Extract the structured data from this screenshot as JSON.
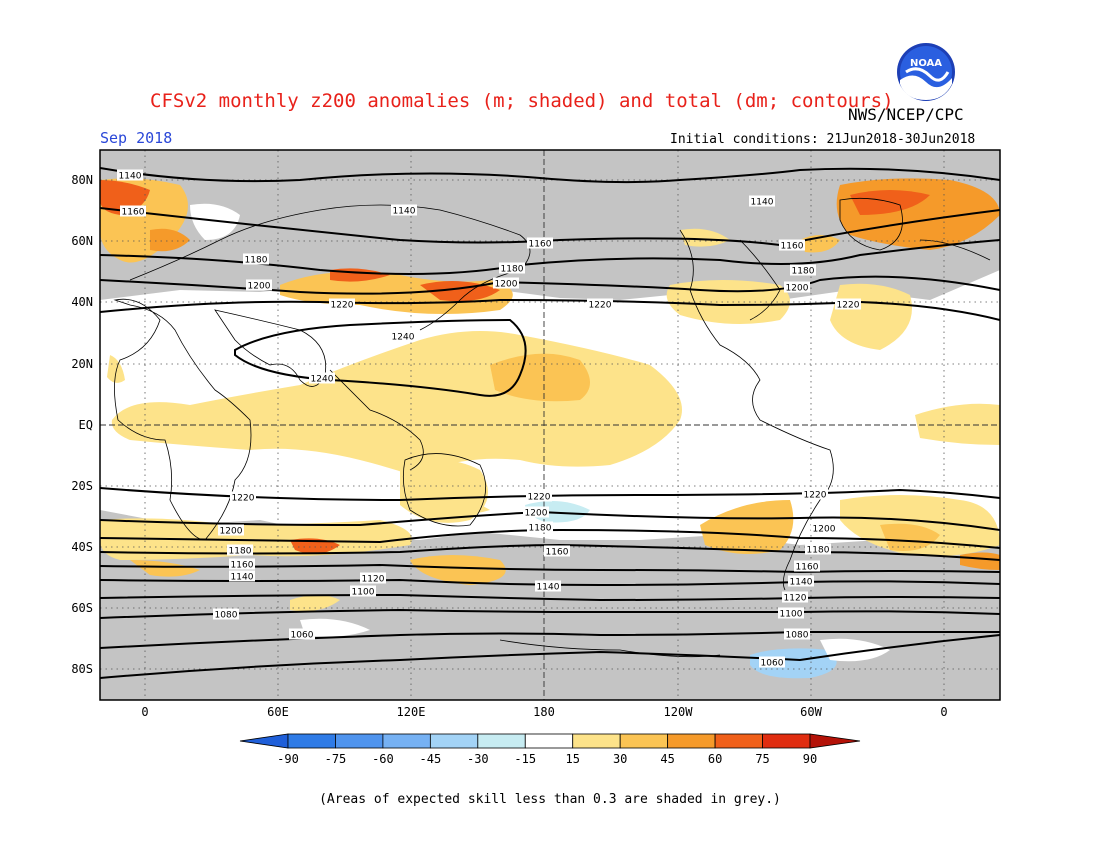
{
  "header": {
    "title": "CFSv2 monthly z200 anomalies (m; shaded) and total (dm; contours)",
    "agency": "NWS/NCEP/CPC",
    "month": "Sep 2018",
    "initial_conditions": "Initial conditions: 21Jun2018-30Jun2018"
  },
  "logo": {
    "icon": "noaa-logo-icon",
    "text": "NOAA"
  },
  "axes": {
    "lat_labels": [
      "80N",
      "60N",
      "40N",
      "20N",
      "EQ",
      "20S",
      "40S",
      "60S",
      "80S"
    ],
    "lon_labels": [
      "0",
      "60E",
      "120E",
      "180",
      "120W",
      "60W",
      "0"
    ]
  },
  "contour_labels": [
    "1140",
    "1160",
    "1180",
    "1200",
    "1220",
    "1240",
    "1240",
    "1140",
    "1160",
    "1180",
    "1200",
    "1220",
    "1140",
    "1160",
    "1180",
    "1200",
    "1220",
    "1220",
    "1200",
    "1180",
    "1160",
    "1140",
    "1120",
    "1100",
    "1080",
    "1060",
    "1220",
    "1200",
    "1180",
    "1160",
    "1140",
    "1220",
    "1200",
    "1180",
    "1160",
    "1140",
    "1120",
    "1100",
    "1080",
    "1060"
  ],
  "colorbar": {
    "tick_labels": [
      "-90",
      "-75",
      "-60",
      "-45",
      "-30",
      "-15",
      "15",
      "30",
      "45",
      "60",
      "75",
      "90"
    ],
    "colors": [
      "#1f5fd9",
      "#2f7be6",
      "#4f94ee",
      "#76b1f3",
      "#a3d3f6",
      "#c7ecf2",
      "#ffffff",
      "#fde38a",
      "#fbc454",
      "#f59a2a",
      "#f0601a",
      "#e02d10",
      "#b41208"
    ]
  },
  "colors": {
    "skill_grey": "#c4c4c4",
    "title": "#e8211a",
    "month": "#2a47d8"
  },
  "footnote": "(Areas of expected skill less than 0.3 are shaded in grey.)"
}
